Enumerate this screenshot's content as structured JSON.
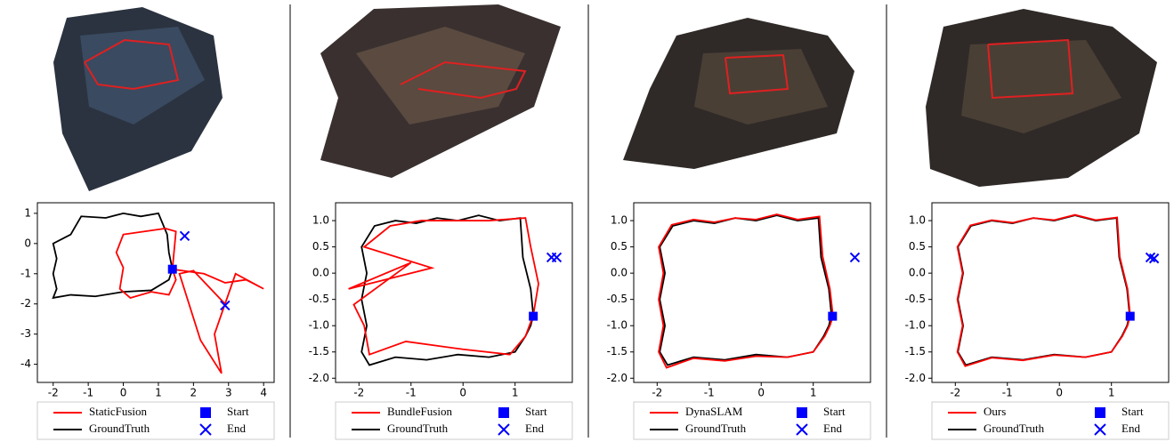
{
  "chart_data": [
    {
      "type": "line",
      "xlim": [
        -2.45,
        4.3
      ],
      "ylim": [
        -4.6,
        1.35
      ],
      "xticks": [
        -2,
        -1,
        0,
        1,
        2,
        3,
        4
      ],
      "yticks": [
        1,
        0,
        -1,
        -2,
        -3,
        -4
      ],
      "series": [
        {
          "name": "StaticFusion",
          "color": "#ff0000",
          "x": [
            1.4,
            1.5,
            1.2,
            0.6,
            0.0,
            -0.2,
            0.0,
            -0.1,
            0.2,
            0.8,
            1.3,
            1.5,
            1.4,
            2.3,
            2.9,
            3.5,
            4.0,
            3.2,
            2.9,
            2.6,
            2.8,
            2.2,
            1.6,
            2.0,
            2.9
          ],
          "y": [
            -0.85,
            0.4,
            0.5,
            0.4,
            0.3,
            -0.3,
            -0.8,
            -1.5,
            -1.8,
            -1.6,
            -1.7,
            -1.2,
            -0.85,
            -1.0,
            -1.3,
            -1.2,
            -1.5,
            -1.0,
            -2.0,
            -3.0,
            -4.3,
            -3.2,
            -1.0,
            -0.9,
            -2.0
          ]
        },
        {
          "name": "GroundTruth",
          "color": "#000000",
          "x": [
            1.4,
            1.3,
            1.25,
            1.0,
            0.5,
            0.0,
            -0.5,
            -1.2,
            -1.5,
            -2.0,
            -1.9,
            -2.0,
            -1.9,
            -2.0,
            -1.5,
            -0.8,
            0.0,
            0.8,
            1.3,
            1.4
          ],
          "y": [
            -0.85,
            -0.3,
            0.3,
            1.0,
            0.9,
            1.0,
            0.85,
            0.9,
            0.3,
            0.0,
            -0.5,
            -1.0,
            -1.5,
            -1.8,
            -1.7,
            -1.75,
            -1.6,
            -1.55,
            -1.2,
            -0.85
          ]
        },
        {
          "name": "Start",
          "color": "#0000ff",
          "marker": "square",
          "x": [
            1.4
          ],
          "y": [
            -0.85
          ]
        },
        {
          "name": "End",
          "color": "#0000ff",
          "marker": "x",
          "x": [
            1.75,
            2.9
          ],
          "y": [
            0.25,
            -2.05
          ]
        }
      ]
    },
    {
      "type": "line",
      "xlim": [
        -2.45,
        2.1
      ],
      "ylim": [
        -2.08,
        1.34
      ],
      "xticks": [
        -2,
        -1,
        0,
        1
      ],
      "yticks": [
        {
          "value": 1,
          "label": "1.0"
        },
        0.5,
        {
          "value": 0,
          "label": "0.0"
        },
        -0.5,
        {
          "value": -1,
          "label": "-1.0"
        },
        -1.5,
        {
          "value": -2,
          "label": "-2.0"
        }
      ],
      "series": [
        {
          "name": "BundleFusion",
          "color": "#ff0000",
          "x": [
            1.35,
            1.45,
            1.3,
            1.2,
            0.5,
            -0.2,
            -0.8,
            -1.4,
            -1.9,
            -0.6,
            -2.2,
            -1.0,
            -2.1,
            -1.9,
            -1.8,
            -1.1,
            0.0,
            0.9,
            1.2,
            1.35
          ],
          "y": [
            -0.8,
            -0.2,
            0.5,
            1.05,
            1.0,
            1.0,
            1.0,
            0.9,
            0.5,
            0.1,
            -0.3,
            0.2,
            -0.6,
            -1.0,
            -1.55,
            -1.3,
            -1.45,
            -1.55,
            -1.2,
            -0.8
          ]
        },
        {
          "name": "GroundTruth",
          "color": "#000000",
          "x": [
            1.35,
            1.3,
            1.15,
            1.1,
            0.7,
            0.3,
            -0.1,
            -0.5,
            -0.9,
            -1.3,
            -1.7,
            -1.95,
            -1.85,
            -1.95,
            -1.85,
            -1.95,
            -1.8,
            -1.3,
            -0.7,
            -0.1,
            0.5,
            1.0,
            1.2,
            1.3,
            1.35
          ],
          "y": [
            -0.8,
            -0.3,
            0.3,
            1.05,
            1.0,
            1.1,
            1.0,
            1.05,
            0.95,
            1.0,
            0.9,
            0.5,
            0.0,
            -0.5,
            -1.0,
            -1.5,
            -1.75,
            -1.6,
            -1.65,
            -1.55,
            -1.6,
            -1.5,
            -1.2,
            -1.0,
            -0.8
          ]
        },
        {
          "name": "Start",
          "color": "#0000ff",
          "marker": "square",
          "x": [
            1.35
          ],
          "y": [
            -0.82
          ]
        },
        {
          "name": "End",
          "color": "#0000ff",
          "marker": "x",
          "x": [
            1.7,
            1.8
          ],
          "y": [
            0.3,
            0.3
          ]
        }
      ]
    },
    {
      "type": "line",
      "xlim": [
        -2.45,
        2.1
      ],
      "ylim": [
        -2.08,
        1.34
      ],
      "xticks": [
        -2,
        -1,
        0,
        1
      ],
      "yticks": [
        {
          "value": 1,
          "label": "1.0"
        },
        0.5,
        {
          "value": 0,
          "label": "0.0"
        },
        -0.5,
        {
          "value": -1,
          "label": "-1.0"
        },
        -1.5,
        {
          "value": -2,
          "label": "-2.0"
        }
      ],
      "series": [
        {
          "name": "DynaSLAM",
          "color": "#ff0000",
          "x": [
            1.38,
            1.32,
            1.18,
            1.12,
            0.7,
            0.3,
            -0.1,
            -0.5,
            -0.9,
            -1.3,
            -1.72,
            -1.97,
            -1.88,
            -1.97,
            -1.88,
            -1.97,
            -1.82,
            -1.3,
            -0.7,
            -0.1,
            0.5,
            1.0,
            1.22,
            1.32,
            1.38
          ],
          "y": [
            -0.82,
            -0.3,
            0.32,
            1.08,
            1.02,
            1.12,
            1.02,
            1.05,
            0.97,
            1.02,
            0.92,
            0.5,
            0.0,
            -0.5,
            -1.0,
            -1.5,
            -1.8,
            -1.62,
            -1.67,
            -1.58,
            -1.6,
            -1.5,
            -1.2,
            -1.0,
            -0.82
          ]
        },
        {
          "name": "GroundTruth",
          "color": "#000000",
          "x": [
            1.35,
            1.3,
            1.15,
            1.1,
            0.7,
            0.3,
            -0.1,
            -0.5,
            -0.9,
            -1.3,
            -1.7,
            -1.95,
            -1.85,
            -1.95,
            -1.85,
            -1.95,
            -1.8,
            -1.3,
            -0.7,
            -0.1,
            0.5,
            1.0,
            1.2,
            1.3,
            1.35
          ],
          "y": [
            -0.8,
            -0.3,
            0.3,
            1.05,
            1.0,
            1.1,
            1.0,
            1.05,
            0.95,
            1.0,
            0.9,
            0.5,
            0.0,
            -0.5,
            -1.0,
            -1.5,
            -1.75,
            -1.6,
            -1.65,
            -1.55,
            -1.6,
            -1.5,
            -1.2,
            -1.0,
            -0.8
          ]
        },
        {
          "name": "Start",
          "color": "#0000ff",
          "marker": "square",
          "x": [
            1.37
          ],
          "y": [
            -0.82
          ]
        },
        {
          "name": "End",
          "color": "#0000ff",
          "marker": "x",
          "x": [
            1.8
          ],
          "y": [
            0.3
          ]
        }
      ]
    },
    {
      "type": "line",
      "xlim": [
        -2.45,
        2.1
      ],
      "ylim": [
        -2.08,
        1.34
      ],
      "xticks": [
        -2,
        -1,
        0,
        1
      ],
      "yticks": [
        {
          "value": 1,
          "label": "1.0"
        },
        0.5,
        {
          "value": 0,
          "label": "0.0"
        },
        -0.5,
        {
          "value": -1,
          "label": "-1.0"
        },
        -1.5,
        {
          "value": -2,
          "label": "-2.0"
        }
      ],
      "series": [
        {
          "name": "Ours",
          "color": "#ff0000",
          "x": [
            1.36,
            1.31,
            1.16,
            1.11,
            0.7,
            0.3,
            -0.1,
            -0.5,
            -0.9,
            -1.3,
            -1.71,
            -1.96,
            -1.86,
            -1.96,
            -1.86,
            -1.96,
            -1.81,
            -1.3,
            -0.7,
            -0.1,
            0.5,
            1.0,
            1.21,
            1.31,
            1.36
          ],
          "y": [
            -0.81,
            -0.3,
            0.31,
            1.06,
            1.01,
            1.11,
            1.01,
            1.05,
            0.96,
            1.01,
            0.91,
            0.5,
            0.0,
            -0.5,
            -1.0,
            -1.5,
            -1.77,
            -1.61,
            -1.66,
            -1.56,
            -1.6,
            -1.5,
            -1.2,
            -1.0,
            -0.81
          ]
        },
        {
          "name": "GroundTruth",
          "color": "#000000",
          "x": [
            1.35,
            1.3,
            1.15,
            1.1,
            0.7,
            0.3,
            -0.1,
            -0.5,
            -0.9,
            -1.3,
            -1.7,
            -1.95,
            -1.85,
            -1.95,
            -1.85,
            -1.95,
            -1.8,
            -1.3,
            -0.7,
            -0.1,
            0.5,
            1.0,
            1.2,
            1.3,
            1.35
          ],
          "y": [
            -0.8,
            -0.3,
            0.3,
            1.05,
            1.0,
            1.1,
            1.0,
            1.05,
            0.95,
            1.0,
            0.9,
            0.5,
            0.0,
            -0.5,
            -1.0,
            -1.5,
            -1.75,
            -1.6,
            -1.65,
            -1.55,
            -1.6,
            -1.5,
            -1.2,
            -1.0,
            -0.8
          ]
        },
        {
          "name": "Start",
          "color": "#0000ff",
          "marker": "square",
          "x": [
            1.36
          ],
          "y": [
            -0.82
          ]
        },
        {
          "name": "End",
          "color": "#0000ff",
          "marker": "x",
          "x": [
            1.75,
            1.82
          ],
          "y": [
            0.3,
            0.28
          ]
        }
      ]
    }
  ]
}
